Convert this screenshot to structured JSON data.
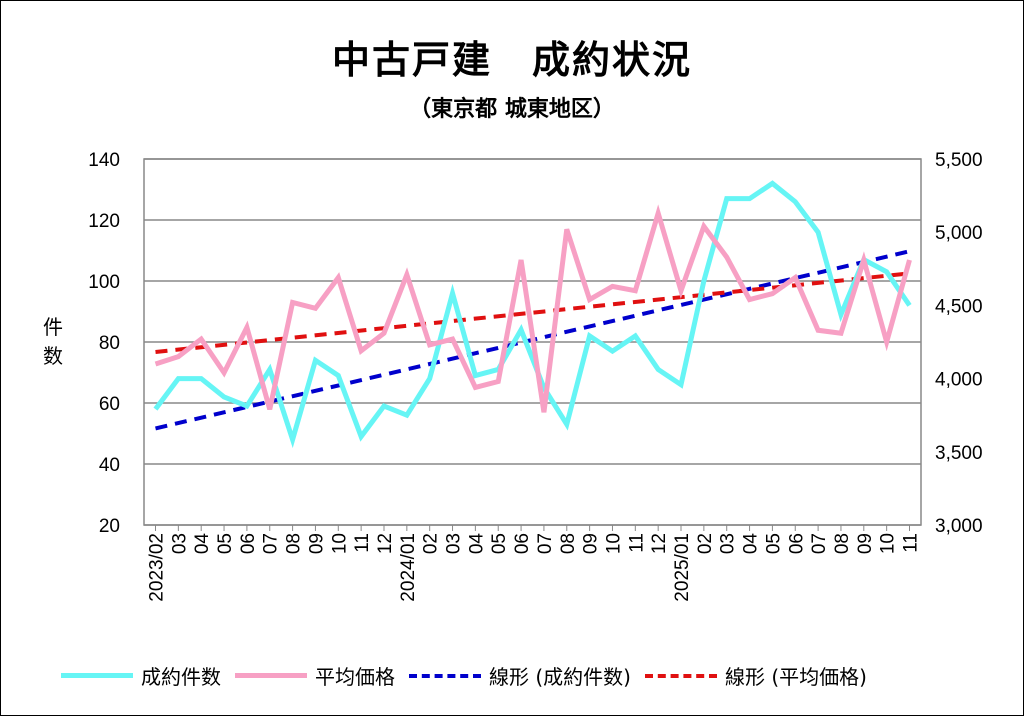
{
  "title": "中古戸建　成約状況",
  "subtitle": "（東京都 城東地区）",
  "chart_data": {
    "type": "line",
    "title": "中古戸建　成約状況",
    "subtitle": "（東京都 城東地区）",
    "ylabel": "件数",
    "ylim": [
      20,
      140
    ],
    "yticks": [
      "20",
      "40",
      "60",
      "80",
      "100",
      "120",
      "140"
    ],
    "y2lim": [
      3000,
      5500
    ],
    "y2ticks": [
      "3,000",
      "3,500",
      "4,000",
      "4,500",
      "5,000",
      "5,500"
    ],
    "grid": true,
    "legend_position": "bottom",
    "x": [
      "2023/02",
      "03",
      "04",
      "05",
      "06",
      "07",
      "08",
      "09",
      "10",
      "11",
      "12",
      "2024/01",
      "02",
      "03",
      "04",
      "05",
      "06",
      "07",
      "08",
      "09",
      "10",
      "11",
      "12",
      "2025/01",
      "02",
      "03",
      "04",
      "05",
      "06",
      "07",
      "08",
      "09",
      "10",
      "11"
    ],
    "series": [
      {
        "name": "成約件数",
        "axis": "left",
        "color": "#66f5f5",
        "values": [
          58,
          68,
          68,
          62,
          59,
          71,
          48,
          74,
          69,
          49,
          59,
          56,
          68,
          96,
          69,
          71,
          84,
          65,
          53,
          82,
          77,
          82,
          71,
          66,
          100,
          127,
          127,
          132,
          126,
          116,
          89,
          107,
          103,
          92
        ]
      },
      {
        "name": "平均価格",
        "axis": "right",
        "color": "#f7a0c4",
        "values": [
          4100,
          4150,
          4270,
          4040,
          4350,
          3790,
          4520,
          4480,
          4690,
          4190,
          4310,
          4710,
          4230,
          4270,
          3940,
          3980,
          4810,
          3770,
          5020,
          4540,
          4630,
          4600,
          5130,
          4600,
          5040,
          4830,
          4540,
          4580,
          4690,
          4330,
          4310,
          4810,
          4250,
          4810
        ]
      },
      {
        "name": "線形 (成約件数)",
        "type": "trend",
        "of": "成約件数",
        "color": "#0000cc"
      },
      {
        "name": "線形 (平均価格)",
        "type": "trend",
        "of": "平均価格",
        "color": "#e01010"
      }
    ]
  }
}
